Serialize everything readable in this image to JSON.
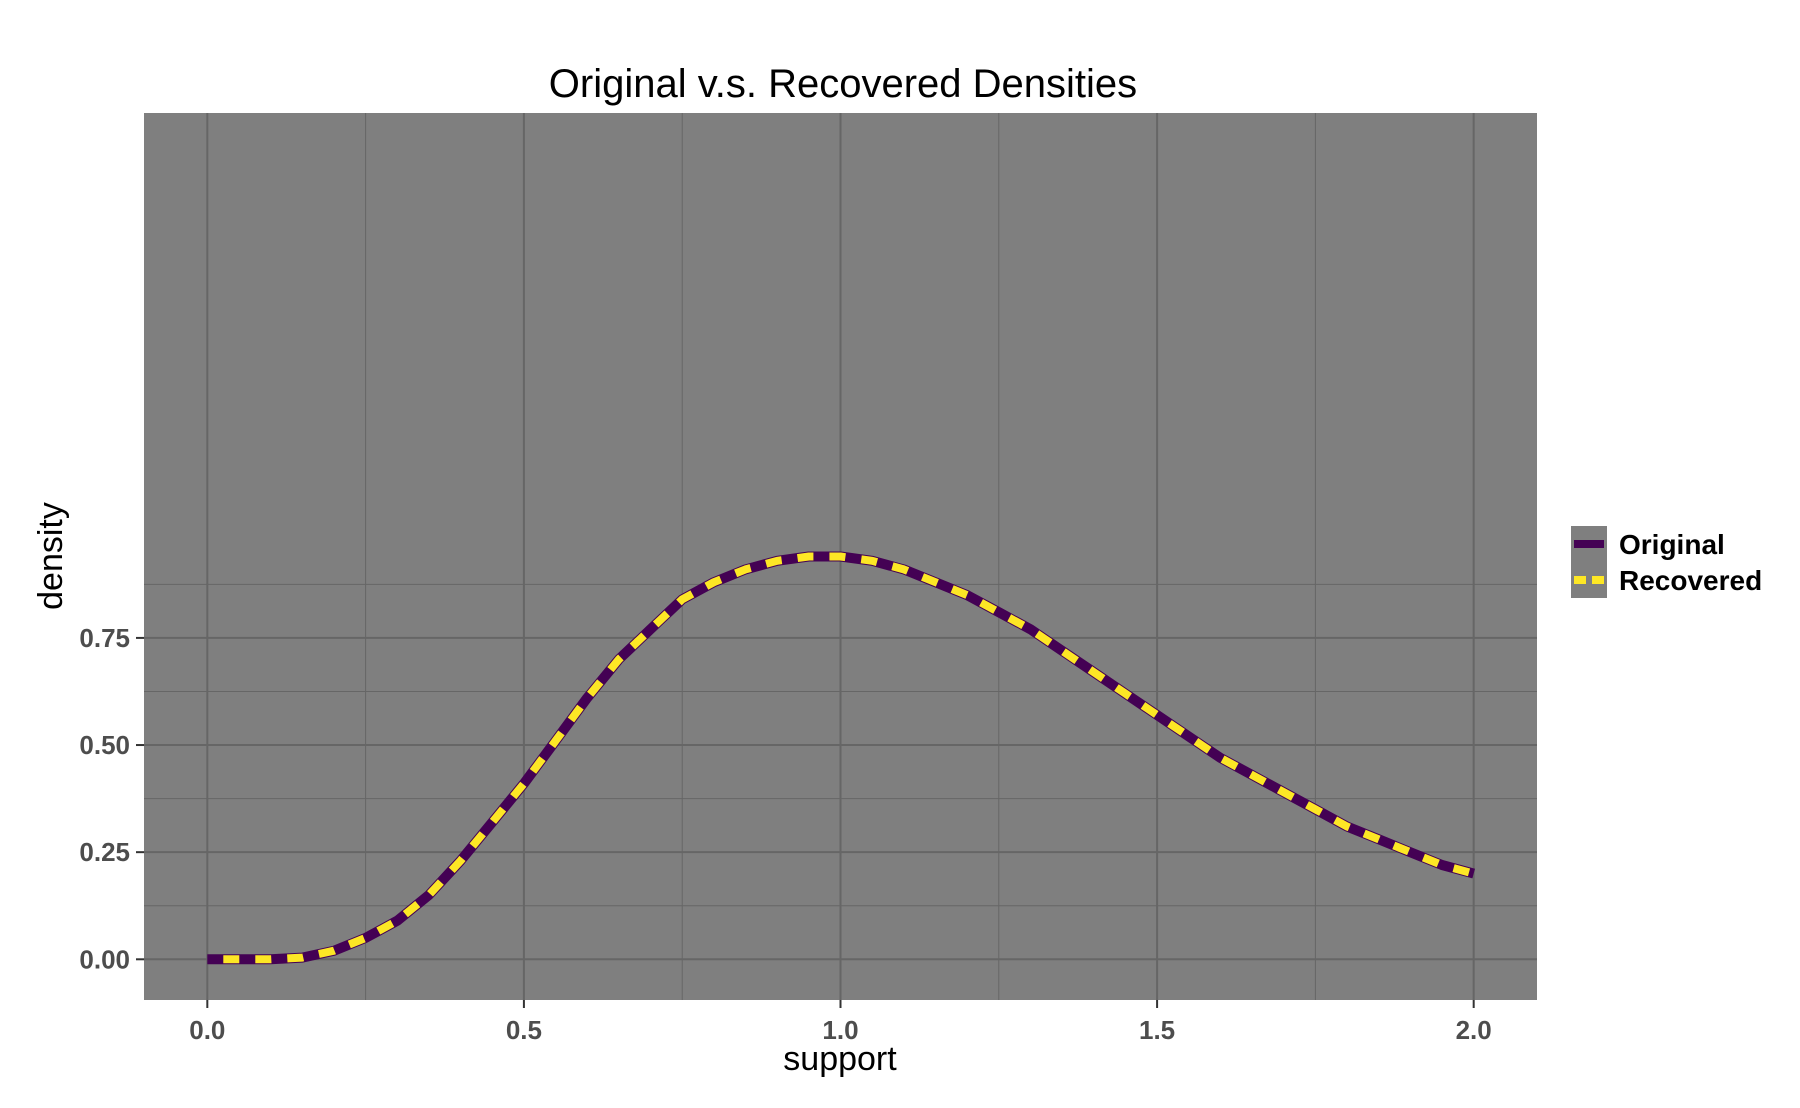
{
  "chart_data": {
    "type": "line",
    "title": "Original v.s. Recovered Densities",
    "xlabel": "support",
    "ylabel": "density",
    "xlim": [
      -0.1,
      2.1
    ],
    "ylim": [
      -0.095,
      1.975
    ],
    "x_ticks": [
      0.0,
      0.5,
      1.0,
      1.5,
      2.0
    ],
    "x_tick_labels": [
      "0.0",
      "0.5",
      "1.0",
      "1.5",
      "2.0"
    ],
    "y_ticks": [
      0.0,
      0.25,
      0.5,
      0.75
    ],
    "y_tick_labels": [
      "0.00",
      "0.25",
      "0.50",
      "0.75"
    ],
    "grid": true,
    "panel_background": "#7f7f7f",
    "grid_color": "#666666",
    "legend_position": "right",
    "x": [
      0.0,
      0.05,
      0.1,
      0.15,
      0.2,
      0.25,
      0.3,
      0.35,
      0.4,
      0.45,
      0.5,
      0.55,
      0.6,
      0.65,
      0.7,
      0.75,
      0.8,
      0.85,
      0.9,
      0.95,
      1.0,
      1.05,
      1.1,
      1.15,
      1.2,
      1.25,
      1.3,
      1.35,
      1.4,
      1.45,
      1.5,
      1.55,
      1.6,
      1.65,
      1.7,
      1.75,
      1.8,
      1.85,
      1.9,
      1.95,
      2.0
    ],
    "series": [
      {
        "name": "Original",
        "color": "#440154",
        "style": "solid",
        "values": [
          0.0,
          0.0,
          0.0,
          0.004,
          0.02,
          0.05,
          0.09,
          0.15,
          0.23,
          0.32,
          0.41,
          0.51,
          0.61,
          0.7,
          0.77,
          0.84,
          0.88,
          0.91,
          0.93,
          0.94,
          0.94,
          0.93,
          0.91,
          0.88,
          0.85,
          0.81,
          0.77,
          0.72,
          0.67,
          0.62,
          0.57,
          0.52,
          0.47,
          0.43,
          0.39,
          0.35,
          0.31,
          0.28,
          0.25,
          0.22,
          0.2
        ]
      },
      {
        "name": "Recovered",
        "color": "#fde725",
        "style": "dashed",
        "values": [
          0.0,
          0.0,
          0.0,
          0.004,
          0.02,
          0.05,
          0.09,
          0.15,
          0.23,
          0.32,
          0.41,
          0.51,
          0.61,
          0.7,
          0.77,
          0.84,
          0.88,
          0.91,
          0.93,
          0.94,
          0.94,
          0.93,
          0.91,
          0.88,
          0.85,
          0.81,
          0.77,
          0.72,
          0.67,
          0.62,
          0.57,
          0.52,
          0.47,
          0.43,
          0.39,
          0.35,
          0.31,
          0.28,
          0.25,
          0.22,
          0.2
        ]
      }
    ]
  }
}
